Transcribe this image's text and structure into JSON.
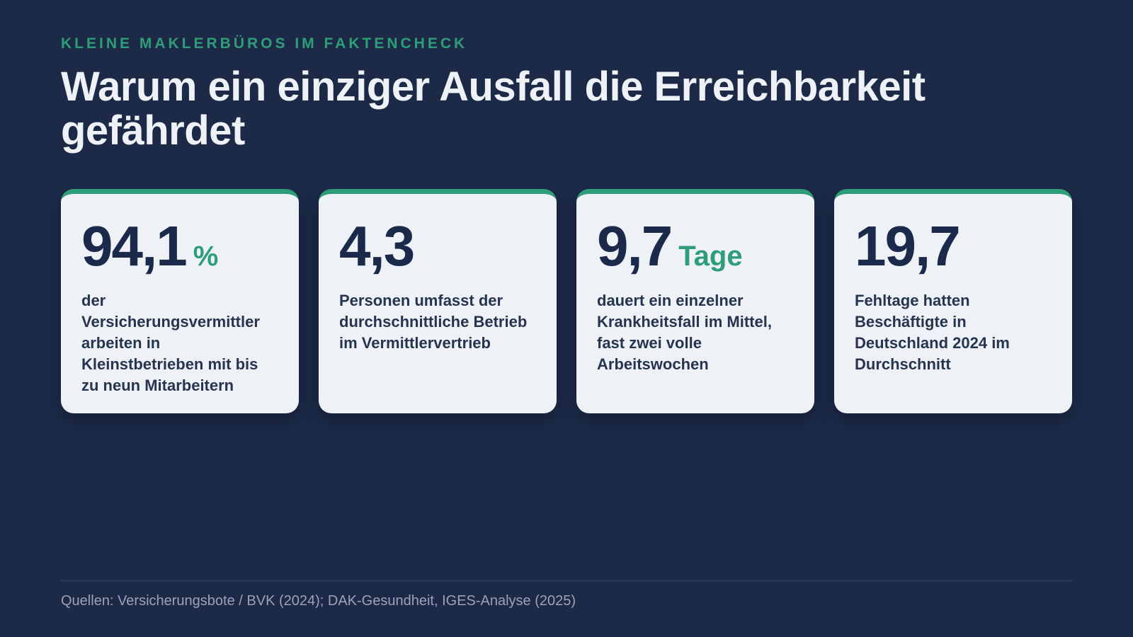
{
  "header": {
    "eyebrow": "KLEINE MAKLERBÜROS IM FAKTENCHECK",
    "title": "Warum ein einziger Ausfall die Erreichbarkeit gefährdet"
  },
  "cards": [
    {
      "value": "94,1",
      "unit": "%",
      "description": "der Versicherungsvermittler arbeiten in Kleinstbetrieben mit bis zu neun Mitarbeitern"
    },
    {
      "value": "4,3",
      "description": "Personen umfasst der durchschnittliche Betrieb im Vermittlervertrieb"
    },
    {
      "value": "9,7",
      "unit": "Tage",
      "description": "dauert ein einzelner Krankheitsfall im Mittel, fast zwei volle Arbeitswochen"
    },
    {
      "value": "19,7",
      "description": "Fehltage hatten Beschäftigte in Deutschland 2024 im Durchschnitt"
    }
  ],
  "footer": {
    "source": "Quellen: Versicherungsbote / BVK (2024); DAK-Gesundheit, IGES-Analyse (2025)"
  }
}
